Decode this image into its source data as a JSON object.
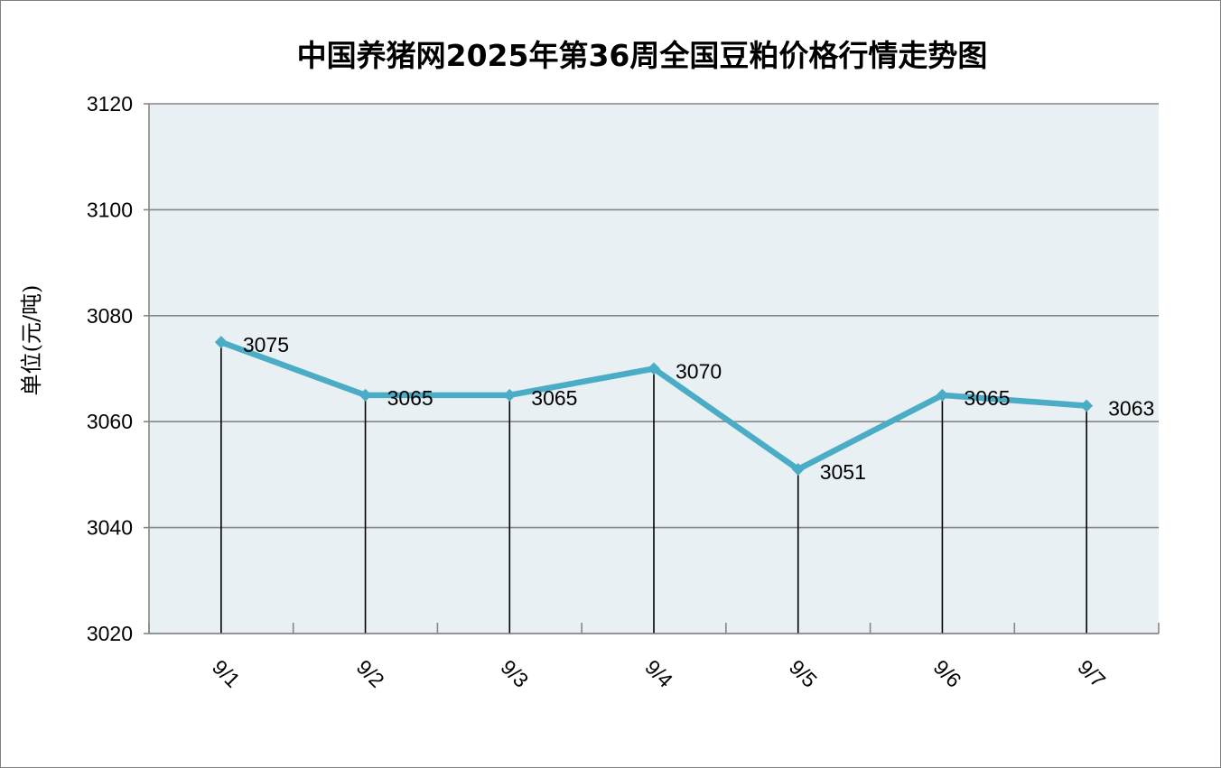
{
  "chart_data": {
    "type": "line",
    "title": "中国养猪网2025年第36周全国豆粕价格行情走势图",
    "ylabel": "单位(元/吨)",
    "xlabel": "",
    "categories": [
      "9/1",
      "9/2",
      "9/3",
      "9/4",
      "9/5",
      "9/6",
      "9/7"
    ],
    "series": [
      {
        "values": [
          3075,
          3065,
          3065,
          3070,
          3051,
          3065,
          3063
        ]
      }
    ],
    "data_labels": [
      "3075",
      "3065",
      "3065",
      "3070",
      "3051",
      "3065",
      "3063"
    ],
    "ylim": [
      3020,
      3120
    ],
    "y_ticks": [
      3020,
      3040,
      3060,
      3080,
      3100,
      3120
    ],
    "y_tick_labels": [
      "3020",
      "3040",
      "3060",
      "3080",
      "3100",
      "3120"
    ],
    "grid": true,
    "drop_lines": true,
    "colors": {
      "line": "#4bacc6",
      "plot_background": "#e9f0f4",
      "gridline": "#868686",
      "drop_line": "#000000",
      "frame": "#7f7f7f"
    }
  }
}
